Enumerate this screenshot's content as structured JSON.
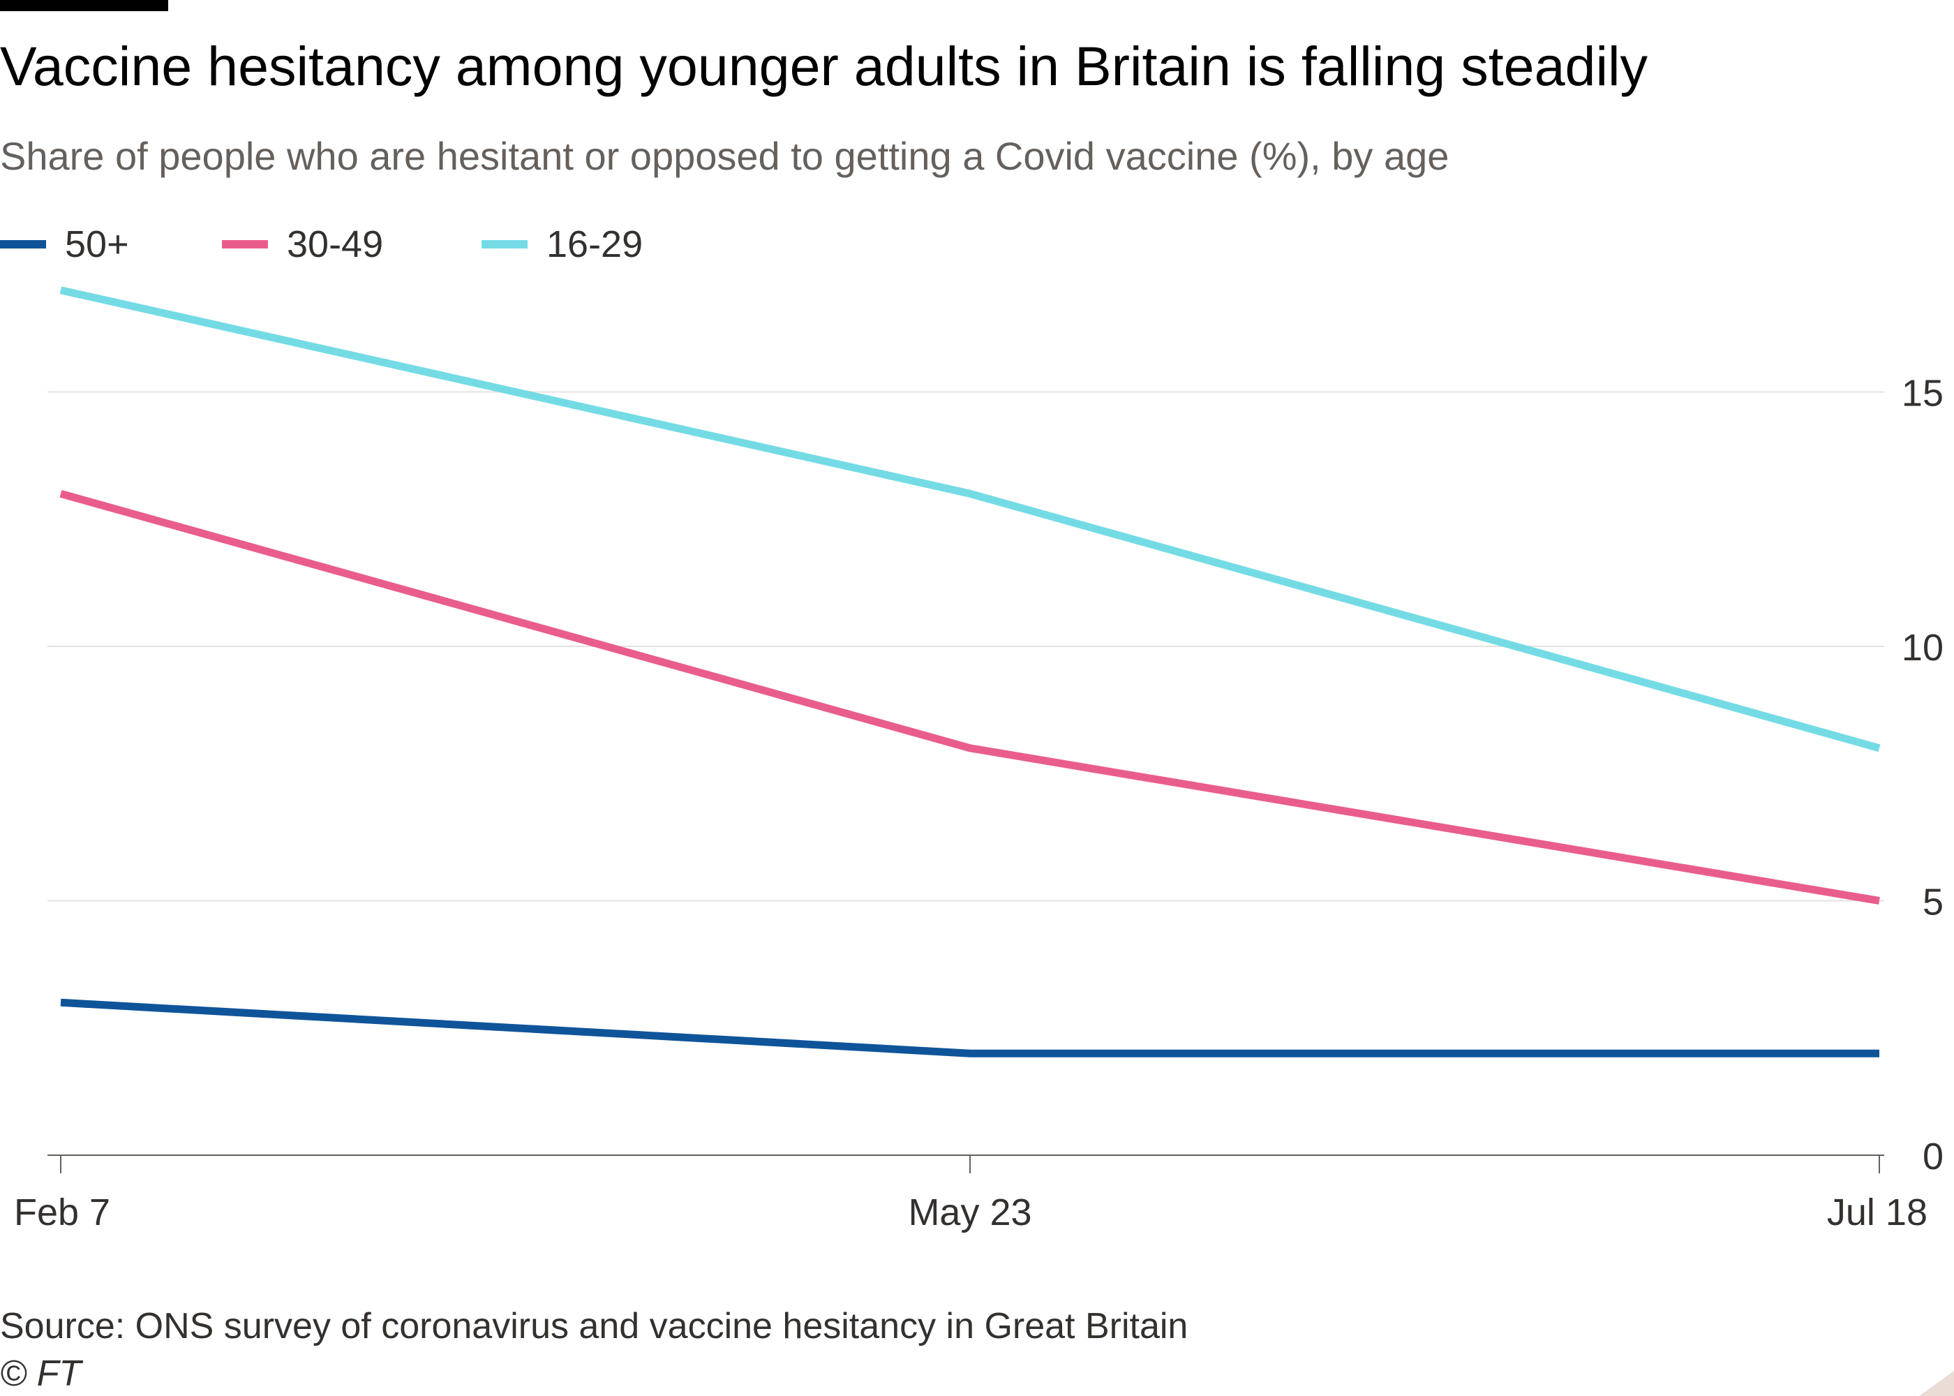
{
  "header": {
    "title": "Vaccine hesitancy among younger adults in Britain is falling steadily",
    "subtitle": "Share of people who are hesitant or opposed to getting a Covid vaccine (%), by age"
  },
  "footer": {
    "source": "Source: ONS survey of coronavirus and vaccine hesitancy in Great Britain",
    "copyright": "© FT"
  },
  "chart_data": {
    "type": "line",
    "title": "Vaccine hesitancy among younger adults in Britain is falling steadily",
    "subtitle": "Share of people who are hesitant or opposed to getting a Covid vaccine (%), by age",
    "x": [
      "Feb 7",
      "May 23",
      "Jul 18"
    ],
    "x_ticks": [
      "Feb 7",
      "May 23",
      "Jul 18"
    ],
    "y_ticks": [
      0,
      5,
      10,
      15
    ],
    "ylim": [
      0,
      17.5
    ],
    "y_axis_side": "right",
    "grid": "horizontal",
    "legend_position": "top-left",
    "series": [
      {
        "name": "50+",
        "values": [
          3,
          2,
          2
        ],
        "color": "#0f5499"
      },
      {
        "name": "30-49",
        "values": [
          13,
          8,
          5
        ],
        "color": "#e95d8c"
      },
      {
        "name": "16-29",
        "values": [
          17,
          13,
          8
        ],
        "color": "#74dbe5"
      }
    ],
    "gridline_color": "#e6e2df",
    "axis_color": "#66605c",
    "tick_label_color": "#33302e"
  }
}
